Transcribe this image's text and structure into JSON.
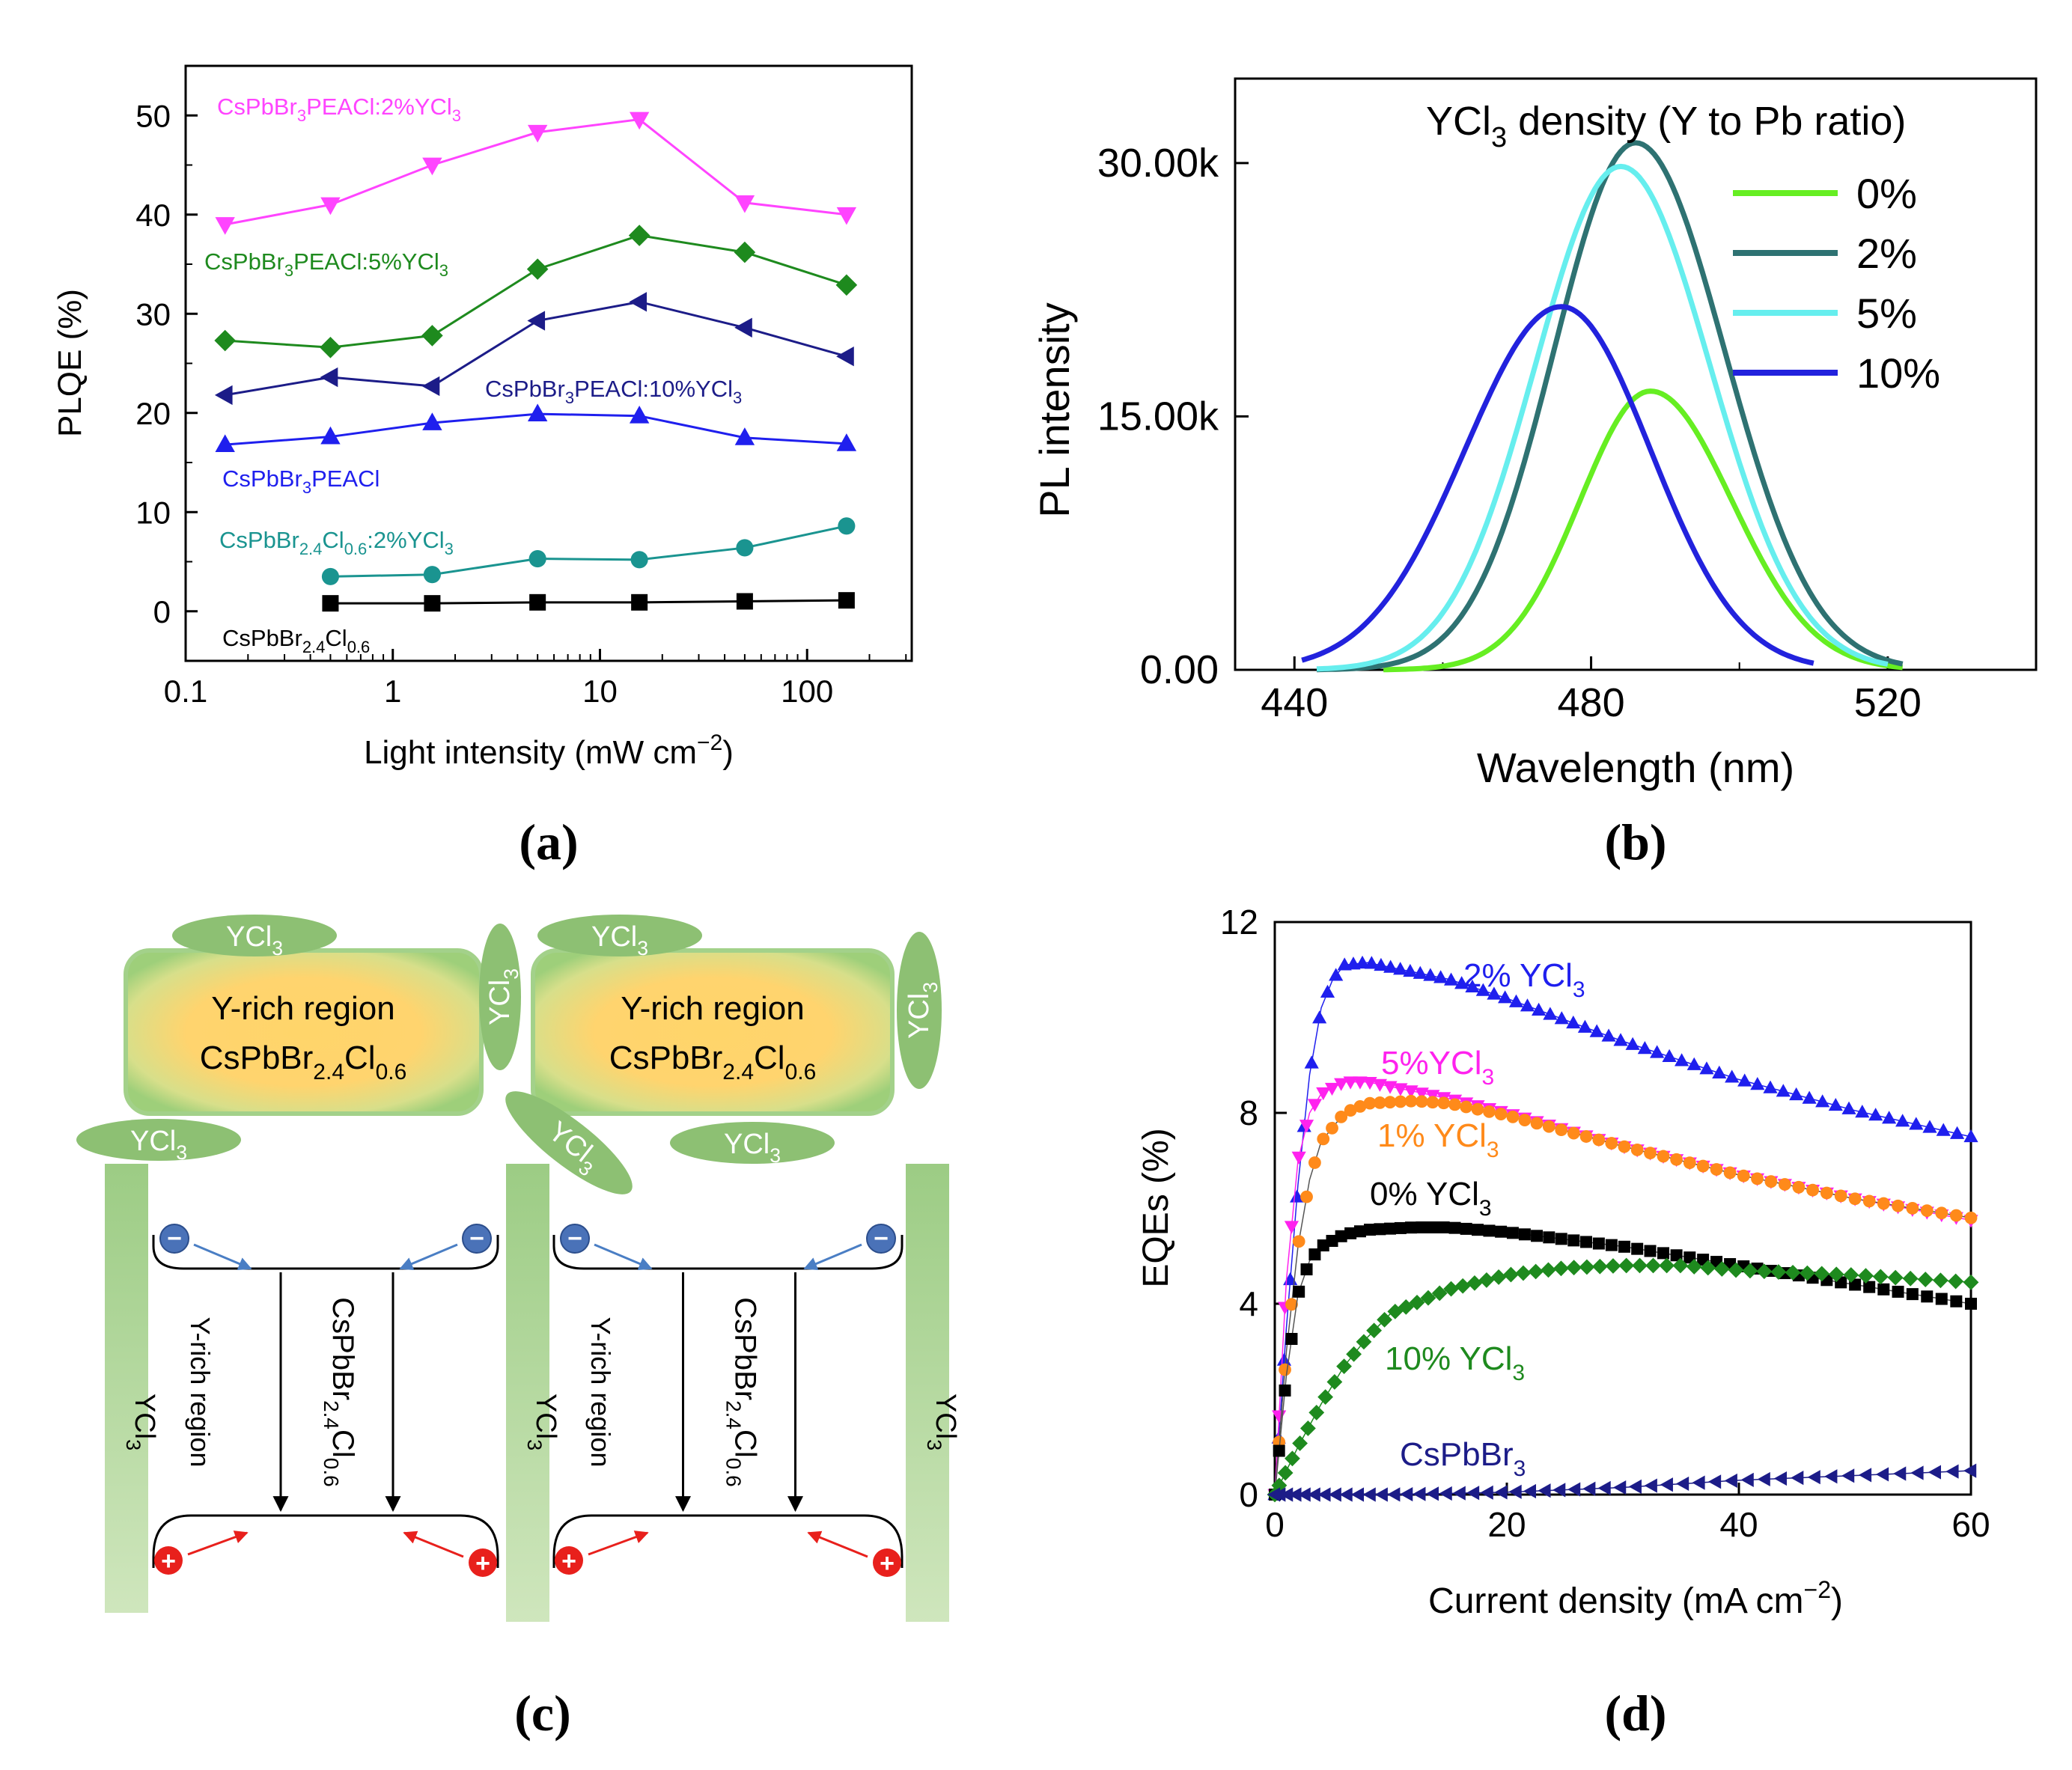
{
  "panels": {
    "a": {
      "label": "(a)"
    },
    "b": {
      "label": "(b)"
    },
    "c": {
      "label": "(c)"
    },
    "d": {
      "label": "(d)"
    }
  },
  "chart_data": [
    {
      "id": "a",
      "type": "line",
      "xscale": "log",
      "xlabel": "Light intensity (mW cm−2)",
      "ylabel": "PLQE (%)",
      "xlim": [
        0.1,
        320
      ],
      "ylim": [
        -5,
        55
      ],
      "xticks": [
        0.1,
        1,
        10,
        100
      ],
      "xtick_labels": [
        "0.1",
        "1",
        "10",
        "100"
      ],
      "yticks": [
        0,
        10,
        20,
        30,
        40,
        50
      ],
      "ytick_labels": [
        "0",
        "10",
        "20",
        "30",
        "40",
        "50"
      ],
      "series": [
        {
          "name": "CsPbBr3PEACl:2%YCl3",
          "color": "#ff44ff",
          "marker": "triangle-down",
          "x": [
            0.155,
            0.5,
            1.55,
            5,
            15.5,
            50,
            155
          ],
          "y": [
            39,
            41,
            45,
            48.3,
            49.6,
            41.2,
            40
          ]
        },
        {
          "name": "CsPbBr3PEACl:5%YCl3",
          "color": "#1e8a1e",
          "marker": "diamond",
          "x": [
            0.155,
            0.5,
            1.55,
            5,
            15.5,
            50,
            155
          ],
          "y": [
            27.3,
            26.6,
            27.8,
            34.5,
            37.9,
            36.2,
            32.9
          ]
        },
        {
          "name": "CsPbBr3PEACl:10%YCl3",
          "color": "#1c1c88",
          "marker": "triangle-left",
          "x": [
            0.155,
            0.5,
            1.55,
            5,
            15.5,
            50,
            155
          ],
          "y": [
            21.8,
            23.6,
            22.7,
            29.3,
            31.2,
            28.6,
            25.7
          ]
        },
        {
          "name": "CsPbBr3PEACl",
          "color": "#1f1fee",
          "marker": "triangle-up",
          "x": [
            0.155,
            0.5,
            1.55,
            5,
            15.5,
            50,
            155
          ],
          "y": [
            16.8,
            17.6,
            19.0,
            19.9,
            19.7,
            17.5,
            16.9
          ]
        },
        {
          "name": "CsPbBr2.4Cl0.6:2%YCl3",
          "color": "#1a9490",
          "marker": "circle",
          "x": [
            0.5,
            1.55,
            5,
            15.5,
            50,
            155
          ],
          "y": [
            3.5,
            3.7,
            5.3,
            5.2,
            6.4,
            8.6
          ]
        },
        {
          "name": "CsPbBr2.4Cl0.6",
          "color": "#000000",
          "marker": "square",
          "x": [
            0.5,
            1.55,
            5,
            15.5,
            50,
            155
          ],
          "y": [
            0.8,
            0.8,
            0.9,
            0.9,
            1.0,
            1.1
          ]
        }
      ],
      "annotations": {
        "s2": [
          "CsPbBr",
          "3",
          "PEACl:2%YCl",
          "3"
        ],
        "s5": [
          "CsPbBr",
          "3",
          "PEACl:5%YCl",
          "3"
        ],
        "s10": [
          "CsPbBr",
          "3",
          "PEACl:10%YCl",
          "3"
        ],
        "s0": [
          "CsPbBr",
          "3",
          "PEACl"
        ],
        "sCl2": [
          "CsPbBr",
          "2.4",
          "Cl",
          "0.6",
          ":2%YCl",
          "3"
        ],
        "sCl": [
          "CsPbBr",
          "2.4",
          "Cl",
          "0.6"
        ]
      }
    },
    {
      "id": "b",
      "type": "line",
      "xlabel": "Wavelength (nm)",
      "ylabel": "PL intensity",
      "xlim": [
        432,
        540
      ],
      "ylim": [
        0,
        35000
      ],
      "xticks": [
        440,
        480,
        520
      ],
      "xtick_labels": [
        "440",
        "480",
        "520"
      ],
      "yticks": [
        0,
        15000,
        30000
      ],
      "ytick_labels": [
        "0.00",
        "15.00k",
        "30.00k"
      ],
      "legend_title": [
        "YCl",
        "3",
        " density (Y to Pb ratio)"
      ],
      "series": [
        {
          "name": "0%",
          "color": "#66ee22",
          "peak_x": 488,
          "peak_y": 16500,
          "sigma_left": 9.5,
          "sigma_right": 11,
          "start_x": 452,
          "end_x": 522
        },
        {
          "name": "2%",
          "color": "#2e7272",
          "peak_x": 486,
          "peak_y": 31200,
          "sigma_left": 11,
          "sigma_right": 12,
          "start_x": 443,
          "end_x": 522
        },
        {
          "name": "5%",
          "color": "#66eeee",
          "peak_x": 484,
          "peak_y": 29800,
          "sigma_left": 11.5,
          "sigma_right": 12,
          "start_x": 443,
          "end_x": 520
        },
        {
          "name": "10%",
          "color": "#2222dd",
          "peak_x": 476,
          "peak_y": 21500,
          "sigma_left": 13,
          "sigma_right": 12,
          "start_x": 441,
          "end_x": 510
        }
      ]
    },
    {
      "id": "d",
      "type": "scatter",
      "xlabel": "Current density (mA cm−2)",
      "ylabel": "EQEs (%)",
      "xlim": [
        0,
        60
      ],
      "ylim": [
        0,
        12
      ],
      "xticks": [
        0,
        20,
        40,
        60
      ],
      "xtick_labels": [
        "0",
        "20",
        "40",
        "60"
      ],
      "yticks": [
        0,
        4,
        8,
        12
      ],
      "ytick_labels": [
        "0",
        "4",
        "8",
        "12"
      ],
      "series": [
        {
          "name": "2% YCl3",
          "label": [
            "2% YCl",
            "3"
          ],
          "color": "#1f1fee",
          "marker": "triangle-up",
          "curve": [
            [
              0,
              0
            ],
            [
              1,
              3.5
            ],
            [
              2,
              6.5
            ],
            [
              3,
              8.8
            ],
            [
              4,
              10.2
            ],
            [
              5,
              10.8
            ],
            [
              6,
              11.1
            ],
            [
              8,
              11.15
            ],
            [
              10,
              11.05
            ],
            [
              15,
              10.8
            ],
            [
              20,
              10.4
            ],
            [
              30,
              9.5
            ],
            [
              40,
              8.7
            ],
            [
              50,
              8.05
            ],
            [
              60,
              7.5
            ]
          ],
          "n": 64
        },
        {
          "name": "5%YCl3",
          "label": [
            "5%YCl",
            "3"
          ],
          "color": "#ff22ee",
          "marker": "triangle-down",
          "curve": [
            [
              0,
              0
            ],
            [
              1,
              4.5
            ],
            [
              2,
              7.0
            ],
            [
              3,
              8.0
            ],
            [
              4,
              8.4
            ],
            [
              6,
              8.65
            ],
            [
              8,
              8.65
            ],
            [
              10,
              8.55
            ],
            [
              15,
              8.3
            ],
            [
              20,
              8.0
            ],
            [
              30,
              7.3
            ],
            [
              40,
              6.7
            ],
            [
              50,
              6.2
            ],
            [
              60,
              5.75
            ]
          ],
          "n": 60
        },
        {
          "name": "1% YCl3",
          "label": [
            "1% YCl",
            "3"
          ],
          "color": "#ff8a1a",
          "marker": "circle",
          "curve": [
            [
              0,
              0
            ],
            [
              1,
              3.0
            ],
            [
              2,
              5.2
            ],
            [
              3,
              6.6
            ],
            [
              4,
              7.4
            ],
            [
              6,
              8.0
            ],
            [
              8,
              8.2
            ],
            [
              12,
              8.25
            ],
            [
              15,
              8.2
            ],
            [
              20,
              7.95
            ],
            [
              30,
              7.3
            ],
            [
              40,
              6.7
            ],
            [
              50,
              6.2
            ],
            [
              60,
              5.8
            ]
          ],
          "n": 60
        },
        {
          "name": "0% YCl3",
          "label": [
            "0% YCl",
            "3"
          ],
          "color": "#000000",
          "marker": "square",
          "curve": [
            [
              0,
              0
            ],
            [
              1,
              2.5
            ],
            [
              2,
              4.2
            ],
            [
              3,
              4.9
            ],
            [
              4,
              5.2
            ],
            [
              6,
              5.45
            ],
            [
              8,
              5.55
            ],
            [
              12,
              5.6
            ],
            [
              15,
              5.6
            ],
            [
              20,
              5.5
            ],
            [
              30,
              5.2
            ],
            [
              40,
              4.8
            ],
            [
              50,
              4.4
            ],
            [
              60,
              4.0
            ]
          ],
          "n": 60
        },
        {
          "name": "10% YCl3",
          "label": [
            "10% YCl",
            "3"
          ],
          "color": "#1e8a1e",
          "marker": "diamond",
          "curve": [
            [
              0,
              0
            ],
            [
              2,
              1.0
            ],
            [
              4,
              1.9
            ],
            [
              6,
              2.7
            ],
            [
              8,
              3.3
            ],
            [
              10,
              3.8
            ],
            [
              15,
              4.3
            ],
            [
              20,
              4.6
            ],
            [
              25,
              4.75
            ],
            [
              30,
              4.8
            ],
            [
              35,
              4.8
            ],
            [
              40,
              4.7
            ],
            [
              50,
              4.6
            ],
            [
              60,
              4.45
            ]
          ],
          "n": 58
        },
        {
          "name": "CsPbBr3",
          "label": [
            "CsPbBr",
            "3"
          ],
          "color": "#1c1c88",
          "marker": "triangle-left",
          "curve": [
            [
              0,
              0
            ],
            [
              10,
              0.0
            ],
            [
              20,
              0.05
            ],
            [
              30,
              0.15
            ],
            [
              40,
              0.3
            ],
            [
              50,
              0.4
            ],
            [
              60,
              0.5
            ]
          ],
          "n": 50
        }
      ]
    }
  ],
  "diagram": {
    "region_title": "Y-rich region",
    "formula": [
      "CsPbBr",
      "2.4",
      "Cl",
      "0.6"
    ],
    "ycl3": [
      "YCl",
      "3"
    ],
    "yrich_vertical": "Y-rich region",
    "minus": "−",
    "plus": "+"
  }
}
